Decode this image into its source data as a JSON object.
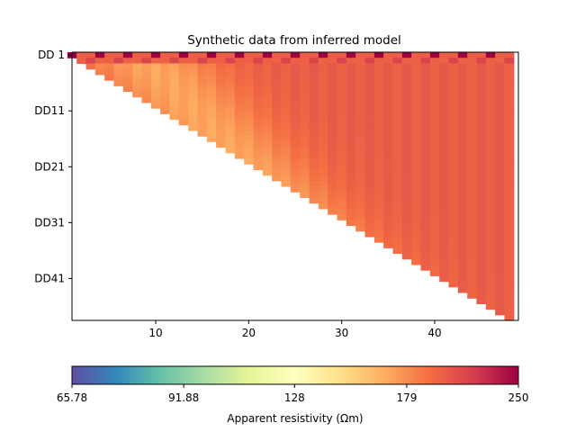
{
  "chart_data": {
    "type": "heatmap",
    "title": "Synthetic data from inferred model",
    "x": {
      "range": [
        1,
        49
      ],
      "ticks": [
        10,
        20,
        30,
        40
      ],
      "tick_labels": [
        "10",
        "20",
        "30",
        "40"
      ]
    },
    "y": {
      "levels": 48,
      "ticks": [
        1,
        11,
        21,
        31,
        41
      ],
      "tick_labels": [
        "DD 1",
        "DD11",
        "DD21",
        "DD31",
        "DD41"
      ],
      "inverted": true
    },
    "pseudosection": {
      "description_free": true,
      "n_electrodes": 49,
      "base_value": 200,
      "top_row_high": 250,
      "top_row_alt": 200,
      "band_value": 170,
      "band_center_offset": -3,
      "band_width": 5
    },
    "colorbar": {
      "label": "Apparent resistivity (Ωm)",
      "tick_labels": [
        "65.78",
        "91.88",
        "128",
        "179",
        "250"
      ],
      "tick_values": [
        65.78,
        91.88,
        128,
        179,
        250
      ],
      "scale": "log",
      "colormap": "Spectral_r",
      "colors": [
        "#5e4fa2",
        "#3288bd",
        "#66c2a5",
        "#abdda4",
        "#e6f598",
        "#ffffbf",
        "#fee08b",
        "#fdae61",
        "#f46d43",
        "#d53e4f",
        "#9e0142"
      ]
    }
  }
}
